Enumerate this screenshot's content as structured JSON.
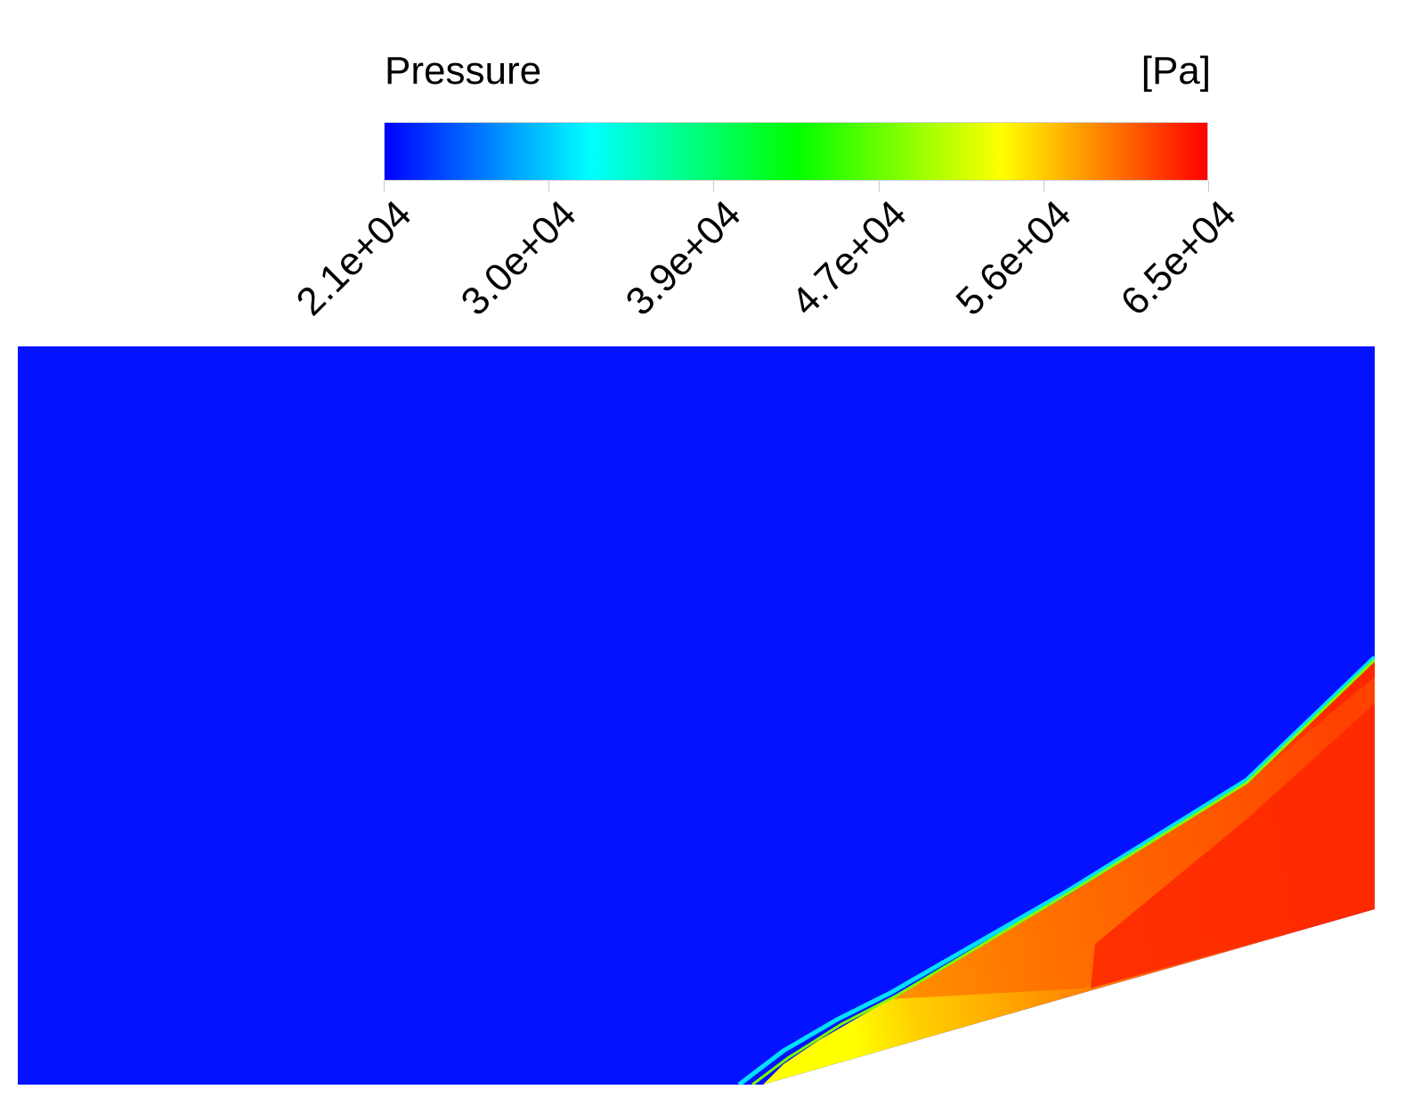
{
  "legend": {
    "variable": "Pressure",
    "unit": "[Pa]",
    "colormap": [
      "#0000ff",
      "#00ffff",
      "#00ff00",
      "#ffff00",
      "#ff0000"
    ],
    "ticks": [
      "2.1e+04",
      "3.0e+04",
      "3.9e+04",
      "4.7e+04",
      "5.6e+04",
      "6.5e+04"
    ]
  },
  "field": {
    "freestream_color": "#0512ff",
    "post_shock_colors": [
      "#ffff00",
      "#ffd000",
      "#ffb000",
      "#ff8c00",
      "#ff6a00",
      "#ff4a00",
      "#ff2600"
    ]
  }
}
